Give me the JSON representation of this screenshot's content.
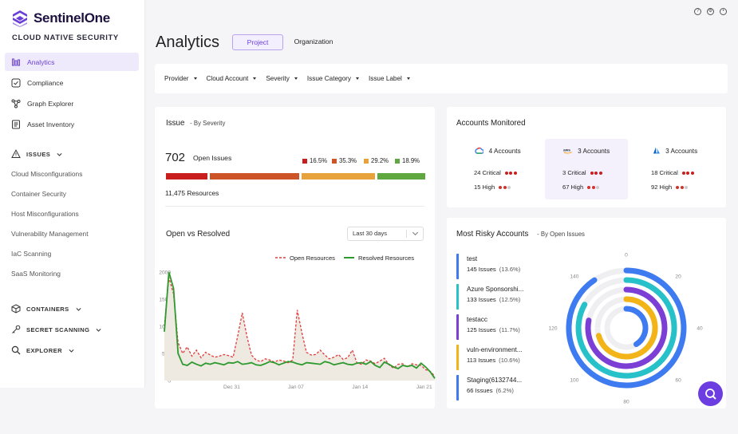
{
  "brand": {
    "name": "SentinelOne",
    "subtitle": "CLOUD NATIVE SECURITY"
  },
  "nav": [
    {
      "label": "Analytics",
      "icon": "analytics-icon",
      "active": true
    },
    {
      "label": "Compliance",
      "icon": "compliance-icon"
    },
    {
      "label": "Graph Explorer",
      "icon": "graph-icon"
    },
    {
      "label": "Asset Inventory",
      "icon": "inventory-icon"
    }
  ],
  "issues_section": {
    "label": "ISSUES",
    "items": [
      "Cloud Misconfigurations",
      "Container Security",
      "Host Misconfigurations",
      "Vulnerability Management",
      "IaC Scanning",
      "SaaS Monitoring"
    ]
  },
  "containers_section": "CONTAINERS",
  "secret_section": "SECRET SCANNING",
  "explorer_section": "EXPLORER",
  "page": {
    "title": "Analytics",
    "tabs": [
      "Project",
      "Organization"
    ]
  },
  "filters": [
    "Provider",
    "Cloud Account",
    "Severity",
    "Issue Category",
    "Issue Label"
  ],
  "issue_card": {
    "title": "Issue",
    "subtitle": "- By Severity",
    "count": "702",
    "count_label": "Open Issues",
    "resources": "11,475 Resources",
    "severity": [
      {
        "pct": "16.5%",
        "value": 16.5,
        "color": "#c81e1e"
      },
      {
        "pct": "35.3%",
        "value": 35.3,
        "color": "#cc5427"
      },
      {
        "pct": "29.2%",
        "value": 29.2,
        "color": "#e8a23b"
      },
      {
        "pct": "18.9%",
        "value": 18.9,
        "color": "#5ea83f"
      }
    ]
  },
  "open_resolved": {
    "title": "Open vs Resolved",
    "range": "Last 30 days",
    "legend_open": "Open Resources",
    "legend_resolved": "Resolved Resources"
  },
  "chart_data": {
    "type": "line",
    "title": "Open vs Resolved",
    "xlabel": "",
    "ylabel": "",
    "ylim": [
      0,
      2000
    ],
    "y_ticks": [
      "0",
      "500",
      "1000",
      "1500",
      "2000"
    ],
    "x_ticks": [
      "Dec 31",
      "Jan 07",
      "Jan 14",
      "Jan 21"
    ],
    "x_tick_pos": [
      7,
      14,
      21,
      28
    ],
    "series": [
      {
        "name": "Open Resources",
        "color": "#e23b3b",
        "x": [
          0,
          0.5,
          1,
          1.5,
          2,
          2.5,
          3,
          3.5,
          4,
          4.5,
          5,
          5.5,
          6,
          6.5,
          7,
          7.5,
          8,
          8.5,
          9,
          9.5,
          10,
          10.5,
          11,
          11.5,
          12,
          12.5,
          13,
          13.5,
          14,
          14.5,
          15,
          15.5,
          16,
          16.5,
          17,
          17.5,
          18,
          18.5,
          19,
          19.5,
          20,
          20.5,
          21,
          21.5,
          22,
          22.5,
          23,
          23.5,
          24,
          24.5,
          25,
          25.5,
          26,
          26.5,
          27,
          27.5,
          28,
          28.5,
          29,
          29.5
        ],
        "y": [
          1000,
          1900,
          1600,
          700,
          500,
          620,
          450,
          560,
          420,
          520,
          470,
          430,
          450,
          480,
          460,
          430,
          820,
          1250,
          820,
          470,
          380,
          350,
          400,
          380,
          340,
          380,
          360,
          330,
          380,
          1300,
          880,
          520,
          470,
          480,
          560,
          470,
          400,
          430,
          480,
          390,
          420,
          560,
          330,
          300,
          380,
          360,
          310,
          360,
          410,
          290,
          230,
          300,
          310,
          250,
          310,
          290,
          280,
          200,
          170,
          80
        ]
      },
      {
        "name": "Resolved Resources",
        "color": "#2e9a2e",
        "x": [
          0,
          0.5,
          1,
          1.5,
          2,
          2.5,
          3,
          3.5,
          4,
          4.5,
          5,
          5.5,
          6,
          6.5,
          7,
          7.5,
          8,
          8.5,
          9,
          9.5,
          10,
          10.5,
          11,
          11.5,
          12,
          12.5,
          13,
          13.5,
          14,
          14.5,
          15,
          15.5,
          16,
          16.5,
          17,
          17.5,
          18,
          18.5,
          19,
          19.5,
          20,
          20.5,
          21,
          21.5,
          22,
          22.5,
          23,
          23.5,
          24,
          24.5,
          25,
          25.5,
          26,
          26.5,
          27,
          27.5,
          28,
          28.5,
          29,
          29.5
        ],
        "y": [
          900,
          2000,
          1700,
          500,
          300,
          280,
          340,
          300,
          270,
          320,
          300,
          330,
          310,
          290,
          330,
          320,
          350,
          300,
          310,
          330,
          290,
          280,
          310,
          350,
          330,
          290,
          320,
          350,
          340,
          310,
          290,
          330,
          320,
          310,
          300,
          350,
          330,
          290,
          310,
          330,
          300,
          290,
          320,
          330,
          300,
          350,
          280,
          240,
          340,
          300,
          250,
          220,
          280,
          260,
          280,
          230,
          320,
          250,
          160,
          40
        ]
      }
    ]
  },
  "accounts": {
    "title": "Accounts Monitored",
    "items": [
      {
        "provider": "gcp-icon",
        "label": "4 Accounts",
        "critical": "24 Critical",
        "high": "15  High"
      },
      {
        "provider": "aws-icon",
        "label": "3 Accounts",
        "critical": "3 Critical",
        "high": "67 High"
      },
      {
        "provider": "azure-icon",
        "label": "3 Accounts",
        "critical": "18 Critical",
        "high": "92 High"
      }
    ]
  },
  "risky": {
    "title": "Most Risky Accounts",
    "subtitle": "- By Open Issues",
    "items": [
      {
        "name": "test",
        "issues": "145 Issues",
        "pct": "(13.6%)",
        "value": 145,
        "color": "#3f7bf0"
      },
      {
        "name": "Azure Sponsorshi...",
        "issues": "133 Issues",
        "pct": "(12.5%)",
        "value": 133,
        "color": "#27c1c9"
      },
      {
        "name": "testacc",
        "issues": "125 Issues",
        "pct": "(11.7%)",
        "value": 125,
        "color": "#7b3fd6"
      },
      {
        "name": "vuln-environment...",
        "issues": "113 Issues",
        "pct": "(10.6%)",
        "value": 113,
        "color": "#f2b417"
      },
      {
        "name": "Staging(6132744...",
        "issues": "66 Issues",
        "pct": "(6.2%)",
        "value": 66,
        "color": "#3f7bf0"
      }
    ],
    "radial_ticks": [
      "0",
      "20",
      "40",
      "60",
      "80",
      "100",
      "120",
      "140"
    ]
  }
}
